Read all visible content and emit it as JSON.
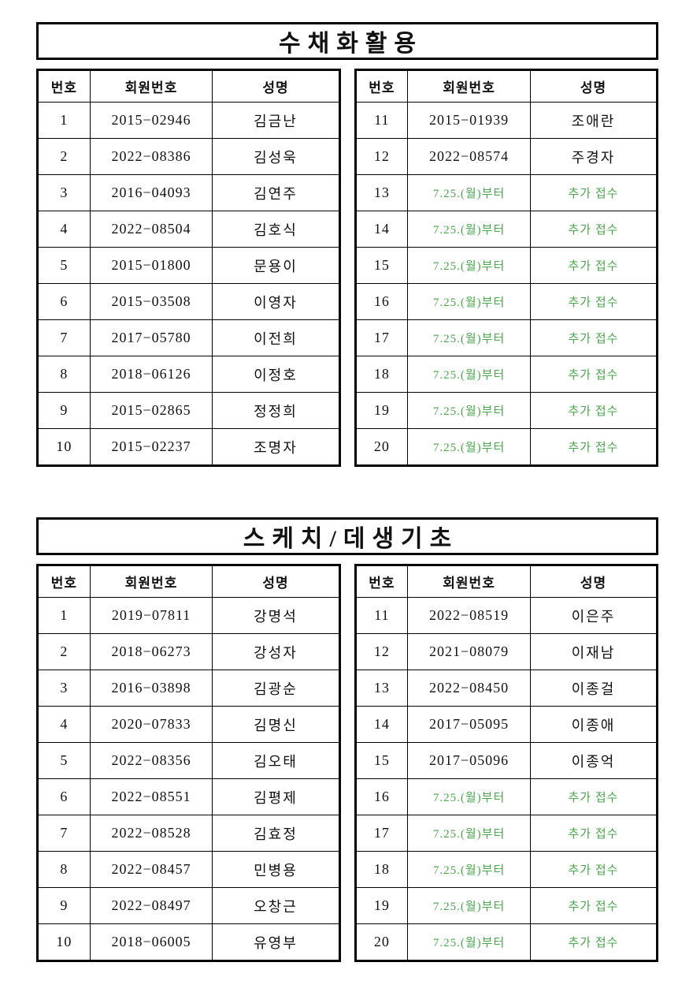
{
  "accent_green": "#4aa64c",
  "sections": [
    {
      "title": "수채화활용",
      "headers": [
        "번호",
        "회원번호",
        "성명"
      ],
      "left_rows": [
        {
          "no": "1",
          "member": "2015−02946",
          "name": "김금난",
          "green": false
        },
        {
          "no": "2",
          "member": "2022−08386",
          "name": "김성욱",
          "green": false
        },
        {
          "no": "3",
          "member": "2016−04093",
          "name": "김연주",
          "green": false
        },
        {
          "no": "4",
          "member": "2022−08504",
          "name": "김호식",
          "green": false
        },
        {
          "no": "5",
          "member": "2015−01800",
          "name": "문용이",
          "green": false
        },
        {
          "no": "6",
          "member": "2015−03508",
          "name": "이영자",
          "green": false
        },
        {
          "no": "7",
          "member": "2017−05780",
          "name": "이전희",
          "green": false
        },
        {
          "no": "8",
          "member": "2018−06126",
          "name": "이정호",
          "green": false
        },
        {
          "no": "9",
          "member": "2015−02865",
          "name": "정정희",
          "green": false
        },
        {
          "no": "10",
          "member": "2015−02237",
          "name": "조명자",
          "green": false
        }
      ],
      "right_rows": [
        {
          "no": "11",
          "member": "2015−01939",
          "name": "조애란",
          "green": false
        },
        {
          "no": "12",
          "member": "2022−08574",
          "name": "주경자",
          "green": false
        },
        {
          "no": "13",
          "member": "7.25.(월)부터",
          "name": "추가 접수",
          "green": true
        },
        {
          "no": "14",
          "member": "7.25.(월)부터",
          "name": "추가 접수",
          "green": true
        },
        {
          "no": "15",
          "member": "7.25.(월)부터",
          "name": "추가 접수",
          "green": true
        },
        {
          "no": "16",
          "member": "7.25.(월)부터",
          "name": "추가 접수",
          "green": true
        },
        {
          "no": "17",
          "member": "7.25.(월)부터",
          "name": "추가 접수",
          "green": true
        },
        {
          "no": "18",
          "member": "7.25.(월)부터",
          "name": "추가 접수",
          "green": true
        },
        {
          "no": "19",
          "member": "7.25.(월)부터",
          "name": "추가 접수",
          "green": true
        },
        {
          "no": "20",
          "member": "7.25.(월)부터",
          "name": "추가 접수",
          "green": true
        }
      ]
    },
    {
      "title": "스케치/데생기초",
      "headers": [
        "번호",
        "회원번호",
        "성명"
      ],
      "left_rows": [
        {
          "no": "1",
          "member": "2019−07811",
          "name": "강명석",
          "green": false
        },
        {
          "no": "2",
          "member": "2018−06273",
          "name": "강성자",
          "green": false
        },
        {
          "no": "3",
          "member": "2016−03898",
          "name": "김광순",
          "green": false
        },
        {
          "no": "4",
          "member": "2020−07833",
          "name": "김명신",
          "green": false
        },
        {
          "no": "5",
          "member": "2022−08356",
          "name": "김오태",
          "green": false
        },
        {
          "no": "6",
          "member": "2022−08551",
          "name": "김평제",
          "green": false
        },
        {
          "no": "7",
          "member": "2022−08528",
          "name": "김효정",
          "green": false
        },
        {
          "no": "8",
          "member": "2022−08457",
          "name": "민병용",
          "green": false
        },
        {
          "no": "9",
          "member": "2022−08497",
          "name": "오창근",
          "green": false
        },
        {
          "no": "10",
          "member": "2018−06005",
          "name": "유영부",
          "green": false
        }
      ],
      "right_rows": [
        {
          "no": "11",
          "member": "2022−08519",
          "name": "이은주",
          "green": false
        },
        {
          "no": "12",
          "member": "2021−08079",
          "name": "이재남",
          "green": false
        },
        {
          "no": "13",
          "member": "2022−08450",
          "name": "이종걸",
          "green": false
        },
        {
          "no": "14",
          "member": "2017−05095",
          "name": "이종애",
          "green": false
        },
        {
          "no": "15",
          "member": "2017−05096",
          "name": "이종억",
          "green": false
        },
        {
          "no": "16",
          "member": "7.25.(월)부터",
          "name": "추가 접수",
          "green": true
        },
        {
          "no": "17",
          "member": "7.25.(월)부터",
          "name": "추가 접수",
          "green": true
        },
        {
          "no": "18",
          "member": "7.25.(월)부터",
          "name": "추가 접수",
          "green": true
        },
        {
          "no": "19",
          "member": "7.25.(월)부터",
          "name": "추가 접수",
          "green": true
        },
        {
          "no": "20",
          "member": "7.25.(월)부터",
          "name": "추가 접수",
          "green": true
        }
      ]
    }
  ]
}
